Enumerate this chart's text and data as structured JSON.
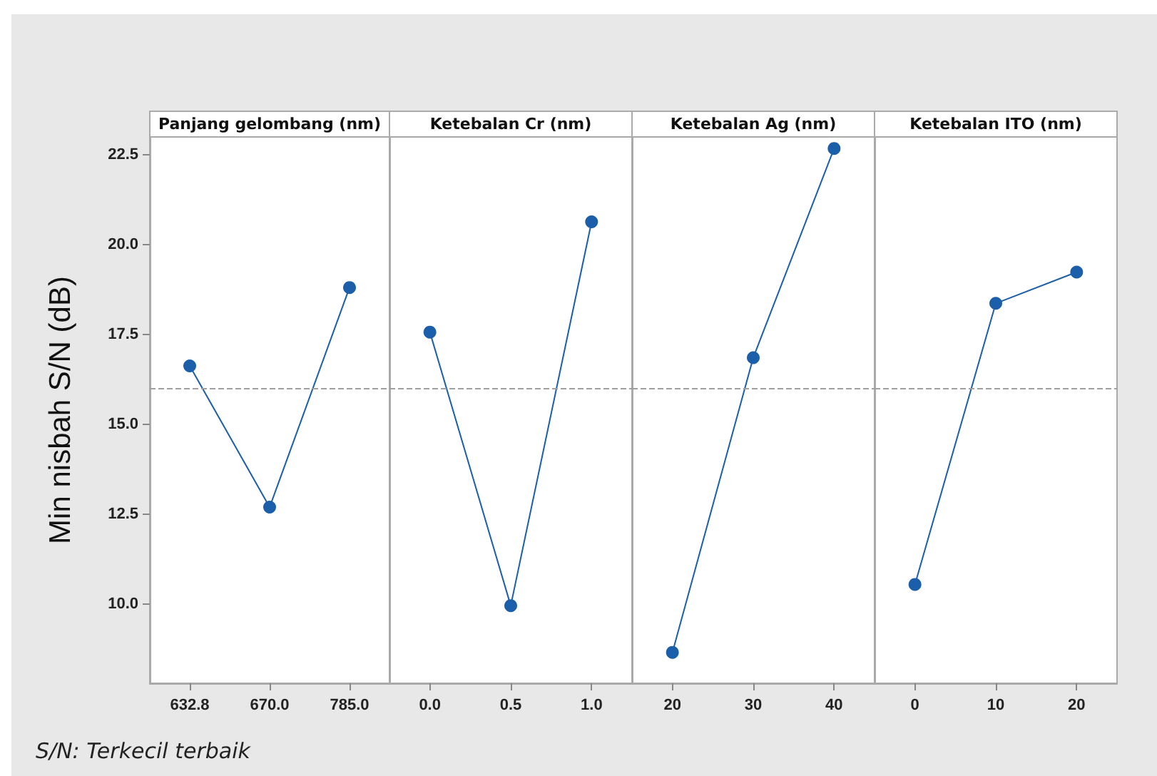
{
  "chart_data": [
    {
      "type": "line",
      "title": "Panjang gelombang (nm)",
      "ylabel": "Min nisbah S/N (dB)",
      "annotations": [
        "S/N: Terkecil terbaik"
      ],
      "categories": [
        "632.8",
        "670.0",
        "785.0"
      ],
      "values": [
        16.63,
        12.7,
        18.81
      ],
      "color": "#1b5eaa",
      "marker": "circle",
      "ylim": [
        7.8,
        23.0
      ],
      "yticks": [
        {
          "value": 10,
          "label": "10.0"
        },
        {
          "value": 12.5,
          "label": "12.5"
        },
        {
          "value": 15,
          "label": "15.0"
        },
        {
          "value": 17.5,
          "label": "17.5"
        },
        {
          "value": 20,
          "label": "20.0"
        },
        {
          "value": 22.5,
          "label": "22.5"
        }
      ],
      "ref_lines": [
        {
          "axis": "y",
          "value": 16.0,
          "line_style": "dashed",
          "color": "#a0a0a0"
        }
      ]
    },
    {
      "type": "line",
      "title": "Ketebalan Cr (nm)",
      "categories": [
        "0.0",
        "0.5",
        "1.0"
      ],
      "values": [
        17.57,
        9.96,
        20.64
      ],
      "color": "#1b5eaa",
      "marker": "circle",
      "ylim": [
        7.8,
        23.0
      ],
      "tick_labels": "x",
      "ref_lines": [
        {
          "axis": "y",
          "value": 16.0,
          "line_style": "dashed",
          "color": "#a0a0a0"
        }
      ]
    },
    {
      "type": "line",
      "title": "Ketebalan Ag (nm)",
      "categories": [
        "20",
        "30",
        "40"
      ],
      "values": [
        8.66,
        16.86,
        22.68
      ],
      "color": "#1b5eaa",
      "marker": "circle",
      "ylim": [
        7.8,
        23.0
      ],
      "tick_labels": "x",
      "ref_lines": [
        {
          "axis": "y",
          "value": 16.0,
          "line_style": "dashed",
          "color": "#a0a0a0"
        }
      ]
    },
    {
      "type": "line",
      "title": "Ketebalan ITO (nm)",
      "categories": [
        "0",
        "10",
        "20"
      ],
      "values": [
        10.55,
        18.37,
        19.24
      ],
      "color": "#1b5eaa",
      "marker": "circle",
      "ylim": [
        7.8,
        23.0
      ],
      "tick_labels": "x",
      "ref_lines": [
        {
          "axis": "y",
          "value": 16.0,
          "line_style": "dashed",
          "color": "#a0a0a0"
        }
      ]
    }
  ]
}
